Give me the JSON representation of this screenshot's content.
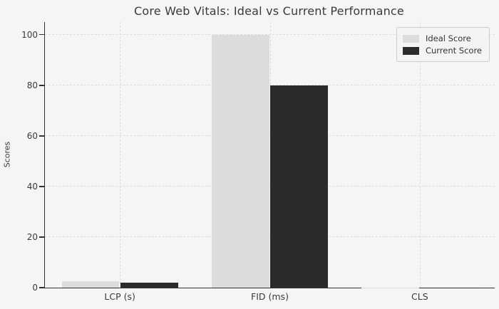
{
  "chart_data": {
    "type": "bar",
    "title": "Core Web Vitals: Ideal vs Current Performance",
    "xlabel": "",
    "ylabel": "Scores",
    "categories": [
      "LCP (s)",
      "FID (ms)",
      "CLS"
    ],
    "series": [
      {
        "name": "Ideal Score",
        "color": "#dcdcdc",
        "values": [
          2.5,
          100,
          0.1
        ]
      },
      {
        "name": "Current Score",
        "color": "#2b2b2b",
        "values": [
          2.0,
          80,
          0.05
        ]
      }
    ],
    "ylim": [
      0,
      105
    ],
    "yticks": [
      0,
      20,
      40,
      60,
      80,
      100
    ],
    "grid": true,
    "grid_style": "dashed",
    "legend_position": "upper-right"
  },
  "style": {
    "figure_background": "#f5f5f5",
    "grid_color": "#dcdcdc",
    "spine_color": "#333333",
    "text_color": "#3a3a3a",
    "legend_background": "#f4f4f4",
    "legend_border": "#cccccc"
  }
}
